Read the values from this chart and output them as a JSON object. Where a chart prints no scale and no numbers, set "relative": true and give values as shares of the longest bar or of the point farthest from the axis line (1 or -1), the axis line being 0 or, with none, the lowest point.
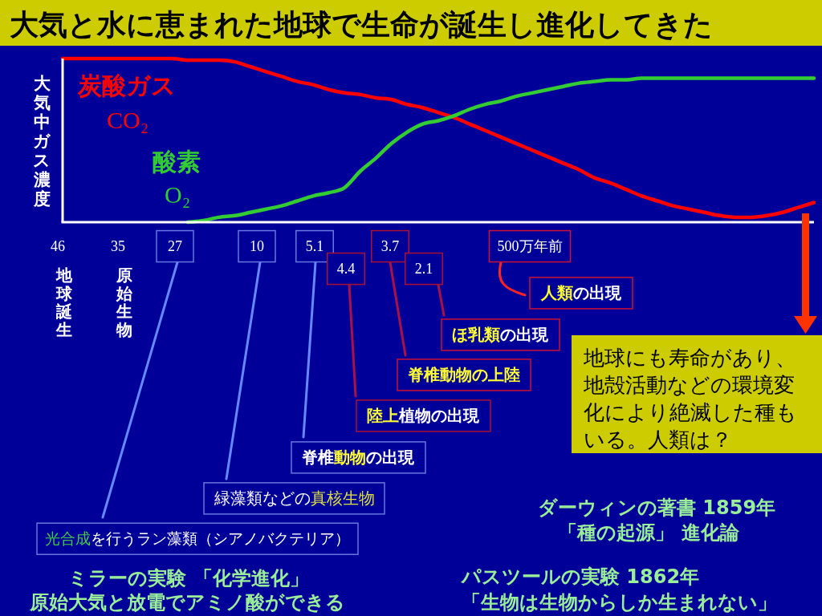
{
  "chart_data": {
    "type": "line",
    "title": "大気と水に恵まれた地球で生命が誕生し進化してきた",
    "ylabel": "大気中ガス濃度",
    "relative": true,
    "categories": [
      null,
      null,
      null,
      null,
      null,
      null,
      null,
      null,
      null,
      null,
      null,
      null,
      null,
      null,
      null,
      null,
      null,
      null,
      null,
      null,
      null,
      null,
      null,
      null,
      null,
      null,
      null,
      null,
      null,
      null,
      null,
      null,
      null,
      null,
      null,
      null,
      null,
      null,
      null,
      null,
      null,
      null,
      null,
      null,
      null,
      null,
      null,
      null,
      null
    ],
    "series": [
      {
        "name": "炭酸ガス\nCO₂",
        "color": "#ff0000",
        "values": [
          1.0,
          1.0,
          1.0,
          1.0,
          1.0,
          1.0,
          1.0,
          1.0,
          0.99,
          0.99,
          0.99,
          0.98,
          0.95,
          0.92,
          0.89,
          0.86,
          0.84,
          0.81,
          0.79,
          0.78,
          0.76,
          0.75,
          0.72,
          0.7,
          0.67,
          0.64,
          0.6,
          0.56,
          0.52,
          0.48,
          0.44,
          0.4,
          0.36,
          0.32,
          0.27,
          0.24,
          0.2,
          0.16,
          0.13,
          0.1,
          0.08,
          0.06,
          0.04,
          0.03,
          0.03,
          0.04,
          0.06,
          0.09,
          0.12
        ]
      },
      {
        "name": "酸素\nO₂",
        "color": "#33cc33",
        "values": [
          null,
          null,
          null,
          null,
          null,
          null,
          null,
          null,
          0.0,
          0.01,
          0.03,
          0.04,
          0.06,
          0.08,
          0.1,
          0.13,
          0.16,
          0.18,
          0.21,
          0.31,
          0.39,
          0.48,
          0.55,
          0.6,
          0.62,
          0.65,
          0.69,
          0.72,
          0.74,
          0.77,
          0.79,
          0.81,
          0.83,
          0.85,
          0.86,
          0.87,
          0.87,
          0.88,
          0.88,
          0.88,
          0.88,
          0.88,
          0.88,
          0.88,
          0.88,
          0.88,
          0.88,
          0.88,
          0.88
        ]
      }
    ],
    "annotations": [
      "46",
      "35",
      "27",
      "10",
      "5.1",
      "4.4",
      "3.7",
      "2.1",
      "500万年前",
      "地球誕生",
      "原始生物",
      "人類の出現",
      "ほ乳類の出現",
      "脊椎動物の上陸",
      "陸上植物の出現",
      "脊椎動物の出現",
      "緑藻類などの真核生物",
      "光合成を行うラン藻類（シアノバクテリア）",
      "地球にも寿命があり、地殻活動などの環境変化により絶滅した種もいる。人類は？",
      "ミラーの実験 「化学進化」",
      "原始大気と放電でアミノ酸ができる",
      "ダーウィンの著書 1859年",
      "「種の起源」 進化論",
      "パスツールの実験 1862年",
      "「生物は生物からしか生まれない」"
    ]
  }
}
